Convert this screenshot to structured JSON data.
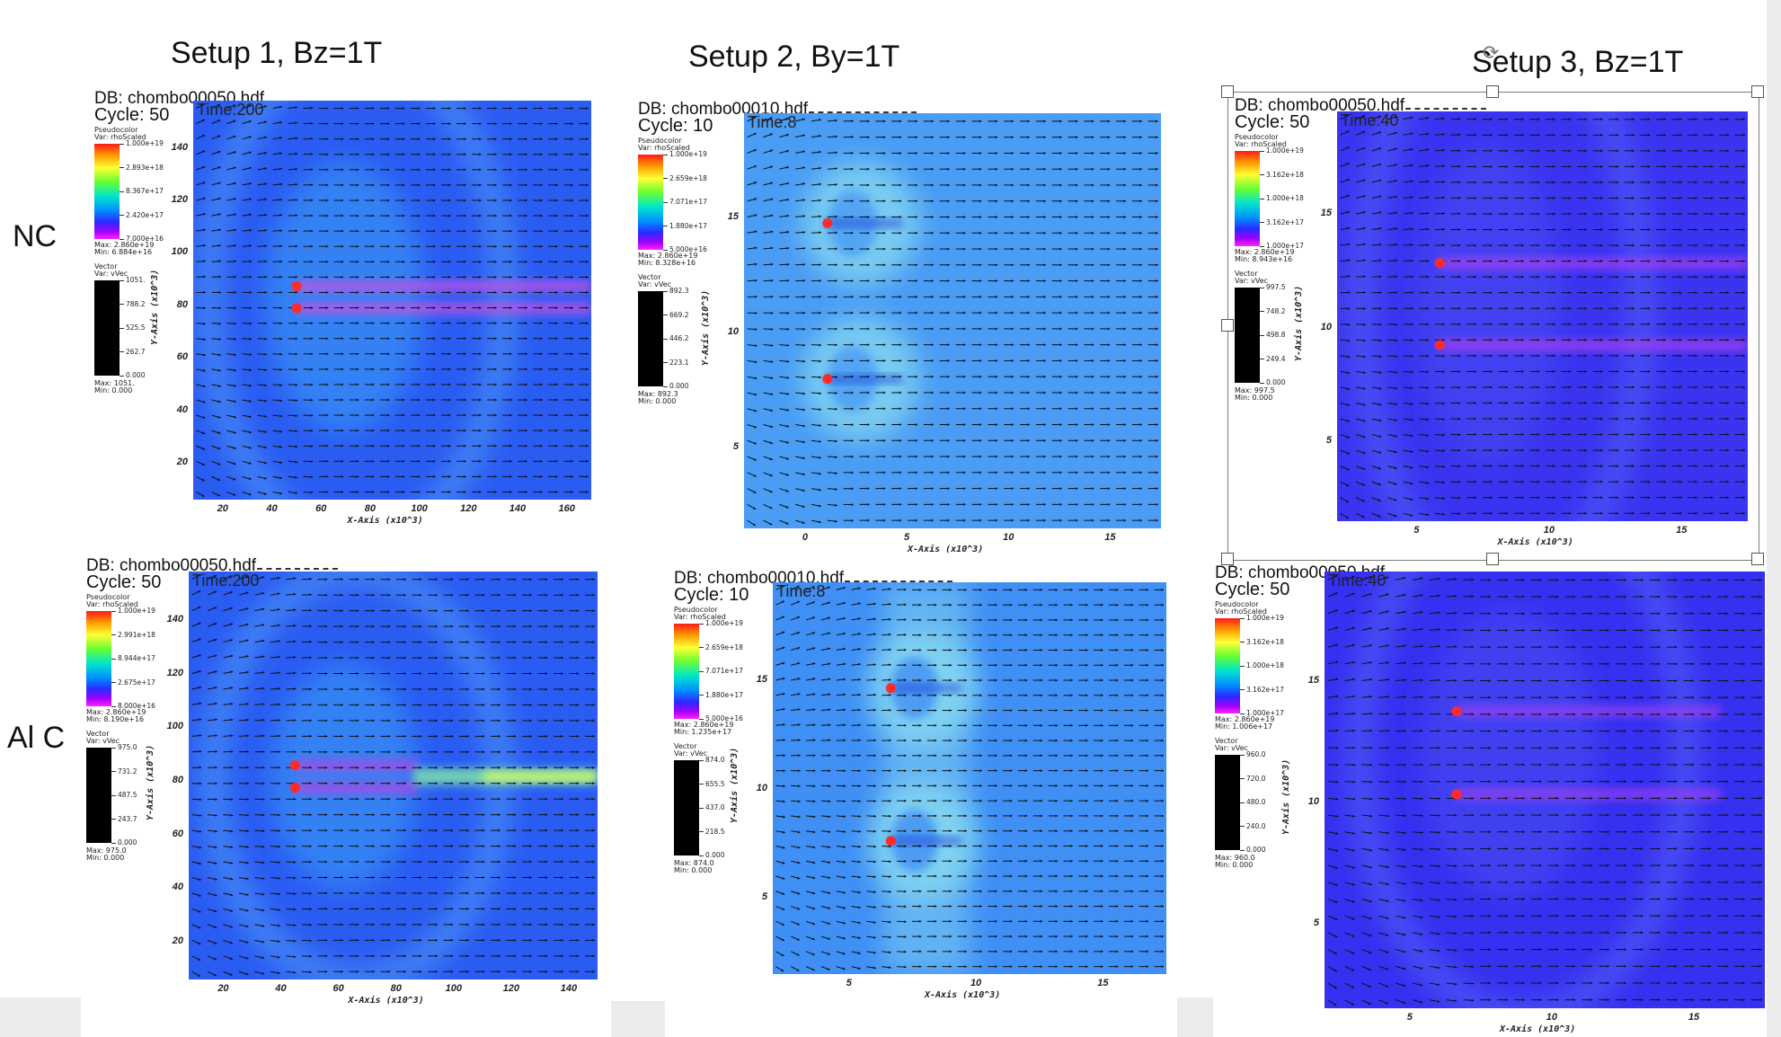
{
  "titles": {
    "setup1": "Setup 1, Bz=1T",
    "setup2": "Setup 2, By=1T",
    "setup3": "Setup 3, Bz=1T"
  },
  "rows": {
    "nc": "NC",
    "alc": "Al C"
  },
  "rotate_icon": "⟳",
  "legend_common": {
    "pc_title": "Pseudocolor",
    "pc_var": "Var: rhoScaled",
    "vec_title": "Vector",
    "vec_var": "Var: vVec"
  },
  "panels": [
    {
      "db": "DB: chombo00050.hdf",
      "cycle": "Cycle: 50",
      "time": "Time:200",
      "pc_ticks": [
        "1.000e+19",
        "2.893e+18",
        "8.367e+17",
        "2.420e+17",
        "7.000e+16"
      ],
      "pc_max": "Max:  2.860e+19",
      "pc_min": "Min:  6.884e+16",
      "vec_ticks": [
        "1051.",
        "788.2",
        "525.5",
        "262.7",
        "0.000"
      ],
      "vec_max": "Max:  1051.",
      "vec_min": "Min:  0.000",
      "yticks": [
        "140",
        "120",
        "100",
        "80",
        "60",
        "40",
        "20"
      ],
      "xticks": [
        "20",
        "40",
        "60",
        "80",
        "100",
        "120",
        "140",
        "160"
      ],
      "xtitle": "X-Axis  (x10^3)",
      "ytitle": "Y-Axis  (x10^3)"
    },
    {
      "db": "DB: chombo00010.hdf",
      "cycle": "Cycle: 10",
      "time": "Time:8",
      "pc_ticks": [
        "1.000e+19",
        "2.659e+18",
        "7.071e+17",
        "1.880e+17",
        "5.000e+16"
      ],
      "pc_max": "Max:  2.860e+19",
      "pc_min": "Min:  8.328e+16",
      "vec_ticks": [
        "892.3",
        "669.2",
        "446.2",
        "223.1",
        "0.000"
      ],
      "vec_max": "Max:  892.3",
      "vec_min": "Min:  0.000",
      "yticks": [
        "15",
        "10",
        "5"
      ],
      "xticks": [
        "0",
        "5",
        "10",
        "15"
      ],
      "xtitle": "X-Axis  (x10^3)",
      "ytitle": "Y-Axis  (x10^3)"
    },
    {
      "db": "DB: chombo00050.hdf",
      "cycle": "Cycle: 50",
      "time": "Time:40",
      "pc_ticks": [
        "1.000e+19",
        "3.162e+18",
        "1.000e+18",
        "3.162e+17",
        "1.000e+17"
      ],
      "pc_max": "Max:  2.860e+19",
      "pc_min": "Min:  8.943e+16",
      "vec_ticks": [
        "997.5",
        "748.2",
        "498.8",
        "249.4",
        "0.000"
      ],
      "vec_max": "Max:  997.5",
      "vec_min": "Min:  0.000",
      "yticks": [
        "15",
        "10",
        "5"
      ],
      "xticks": [
        "5",
        "10",
        "15"
      ],
      "xtitle": "X-Axis  (x10^3)",
      "ytitle": "Y-Axis  (x10^3)"
    },
    {
      "db": "DB: chombo00050.hdf",
      "cycle": "Cycle: 50",
      "time": "Time:200",
      "pc_ticks": [
        "1.000e+19",
        "2.991e+18",
        "8.944e+17",
        "2.675e+17",
        "8.000e+16"
      ],
      "pc_max": "Max:  2.860e+19",
      "pc_min": "Min:  8.190e+16",
      "vec_ticks": [
        "975.0",
        "731.2",
        "487.5",
        "243.7",
        "0.000"
      ],
      "vec_max": "Max:  975.0",
      "vec_min": "Min:  0.000",
      "yticks": [
        "140",
        "120",
        "100",
        "80",
        "60",
        "40",
        "20"
      ],
      "xticks": [
        "20",
        "40",
        "60",
        "80",
        "100",
        "120",
        "140"
      ],
      "xtitle": "X-Axis  (x10^3)",
      "ytitle": "Y-Axis  (x10^3)"
    },
    {
      "db": "DB: chombo00010.hdf",
      "cycle": "Cycle: 10",
      "time": "Time:8",
      "pc_ticks": [
        "1.000e+19",
        "2.659e+18",
        "7.071e+17",
        "1.880e+17",
        "5.000e+16"
      ],
      "pc_max": "Max:  2.860e+19",
      "pc_min": "Min:  1.235e+17",
      "vec_ticks": [
        "874.0",
        "655.5",
        "437.0",
        "218.5",
        "0.000"
      ],
      "vec_max": "Max:  874.0",
      "vec_min": "Min:  0.000",
      "yticks": [
        "15",
        "10",
        "5"
      ],
      "xticks": [
        "5",
        "10",
        "15"
      ],
      "xtitle": "X-Axis  (x10^3)",
      "ytitle": "Y-Axis  (x10^3)"
    },
    {
      "db": "DB: chombo00050.hdf",
      "cycle": "Cycle: 50",
      "time": "Time:40",
      "pc_ticks": [
        "1.000e+19",
        "3.162e+18",
        "1.000e+18",
        "3.162e+17",
        "1.000e+17"
      ],
      "pc_max": "Max:  2.860e+19",
      "pc_min": "Min:  1.006e+17",
      "vec_ticks": [
        "960.0",
        "720.0",
        "480.0",
        "240.0",
        "0.000"
      ],
      "vec_max": "Max:  960.0",
      "vec_min": "Min:  0.000",
      "yticks": [
        "15",
        "10",
        "5"
      ],
      "xticks": [
        "5",
        "10",
        "15"
      ],
      "xtitle": "X-Axis  (x10^3)",
      "ytitle": "Y-Axis  (x10^3)"
    }
  ]
}
